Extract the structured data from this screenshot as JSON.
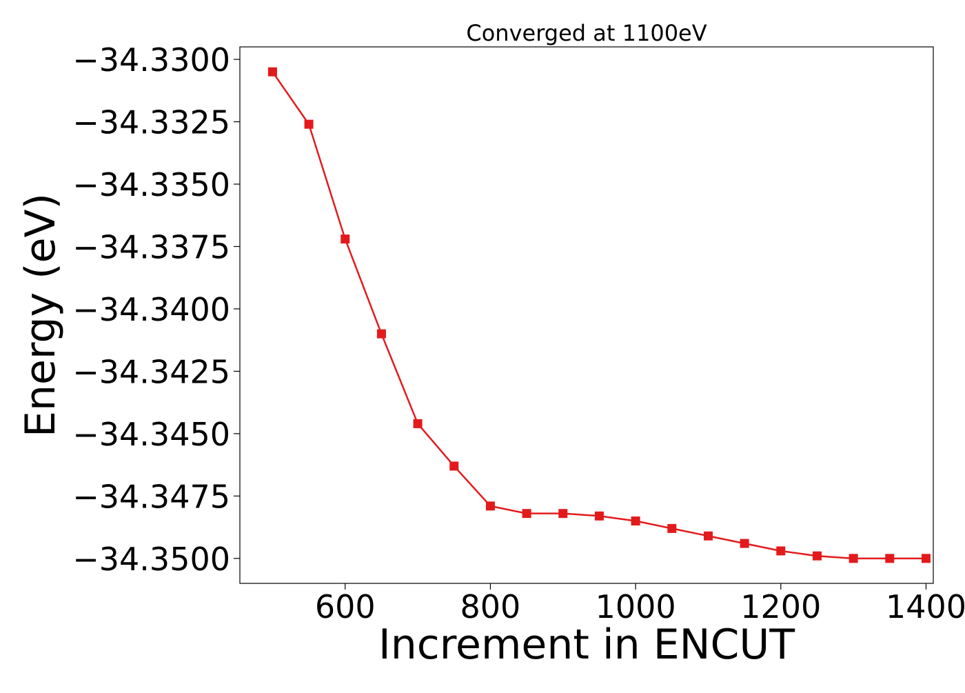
{
  "chart_data": {
    "type": "line",
    "title": "Converged at 1100eV",
    "xlabel": "Increment in ENCUT",
    "ylabel": "Energy (eV)",
    "xlim": [
      455,
      1410
    ],
    "ylim": [
      -34.351,
      -34.3295
    ],
    "x_ticks": [
      600,
      800,
      1000,
      1200,
      1400
    ],
    "y_ticks": [
      -34.33,
      -34.3325,
      -34.335,
      -34.3375,
      -34.34,
      -34.3425,
      -34.345,
      -34.3475,
      -34.35
    ],
    "x_tick_labels": [
      "600",
      "800",
      "1000",
      "1200",
      "1400"
    ],
    "y_tick_labels": [
      "−34.3300",
      "−34.3325",
      "−34.3350",
      "−34.3375",
      "−34.3400",
      "−34.3425",
      "−34.3450",
      "−34.3475",
      "−34.3500"
    ],
    "grid": false,
    "marker": "square",
    "color": "#e31a1c",
    "series": [
      {
        "x": [
          500,
          550,
          600,
          650,
          700,
          750,
          800,
          850,
          900,
          950,
          1000,
          1050,
          1100,
          1150,
          1200,
          1250,
          1300,
          1350,
          1400
        ],
        "y": [
          -34.3305,
          -34.3326,
          -34.3372,
          -34.341,
          -34.3446,
          -34.3463,
          -34.3479,
          -34.3482,
          -34.3482,
          -34.3483,
          -34.3485,
          -34.3488,
          -34.3491,
          -34.3494,
          -34.3497,
          -34.3499,
          -34.35,
          -34.35,
          -34.35
        ]
      }
    ]
  }
}
